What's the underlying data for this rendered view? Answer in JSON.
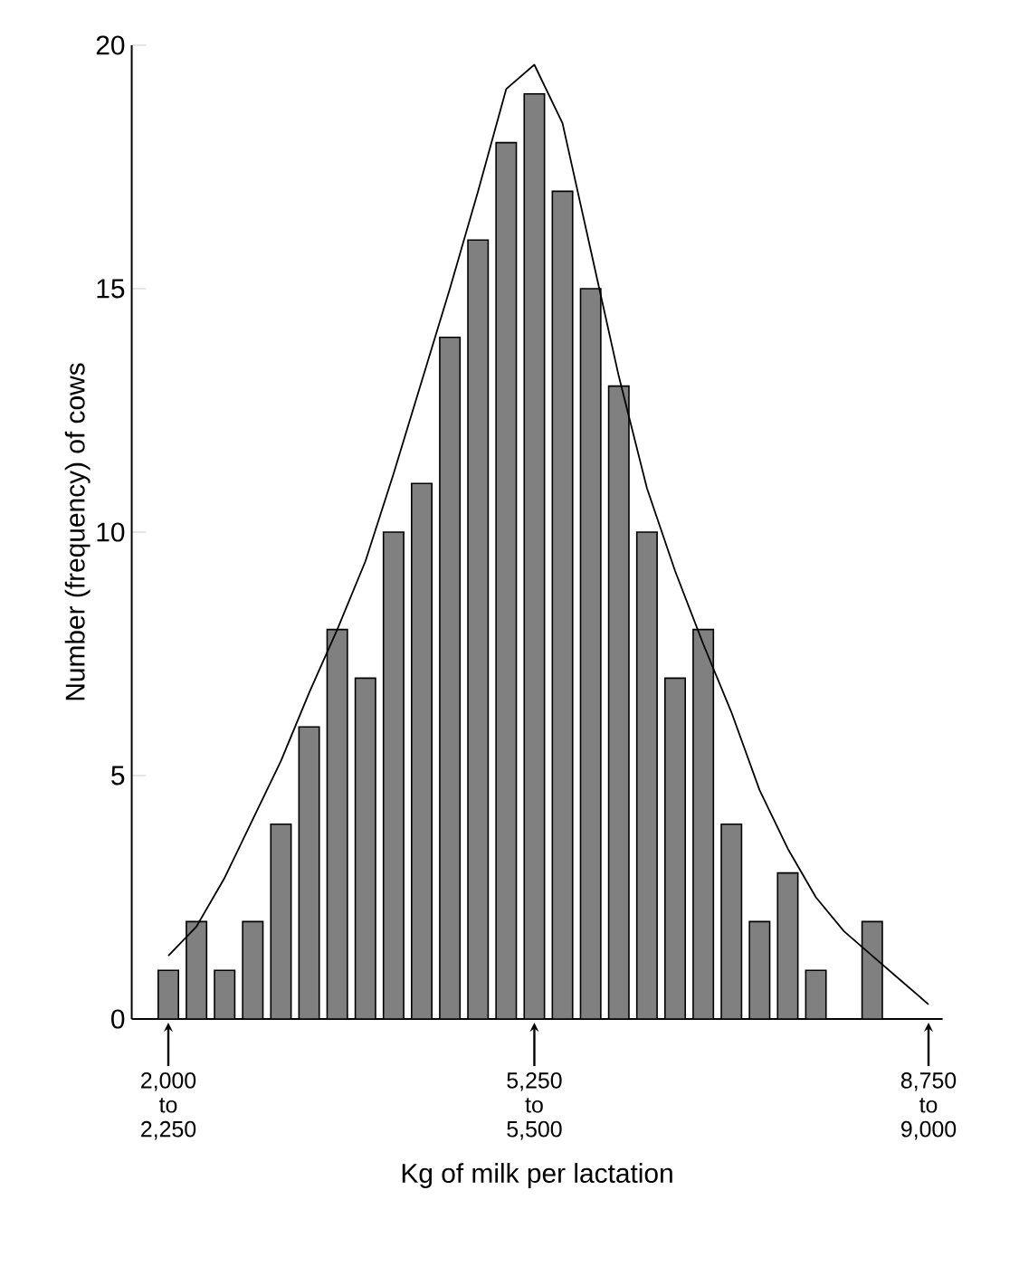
{
  "chart_data": {
    "type": "bar",
    "xlabel": "Kg of milk per lactation",
    "ylabel": "Number (frequency) of cows",
    "categories": [
      "2,000 to 2,250",
      null,
      null,
      null,
      null,
      null,
      null,
      null,
      null,
      null,
      null,
      null,
      null,
      "5,250 to 5,500",
      null,
      null,
      null,
      null,
      null,
      null,
      null,
      null,
      null,
      null,
      null,
      null,
      null,
      "8,750 to 9,000"
    ],
    "values": [
      1,
      2,
      1,
      2,
      4,
      6,
      8,
      7,
      10,
      11,
      14,
      16,
      18,
      19,
      17,
      15,
      13,
      10,
      7,
      8,
      4,
      2,
      3,
      1,
      0,
      2,
      0,
      0
    ],
    "color": "#808080",
    "series": [
      {
        "type": "line",
        "color": "#000000",
        "values": [
          1.3,
          1.9,
          2.9,
          4.1,
          5.3,
          6.7,
          8.0,
          9.4,
          11.2,
          13.1,
          15.0,
          17.0,
          19.1,
          19.6,
          18.4,
          15.8,
          13.2,
          10.9,
          9.2,
          7.7,
          6.3,
          4.7,
          3.5,
          2.5,
          1.8,
          1.3,
          0.8,
          0.3
        ]
      }
    ],
    "ylim": [
      0,
      20
    ],
    "yticks": [
      0,
      5,
      10,
      15,
      20
    ]
  }
}
